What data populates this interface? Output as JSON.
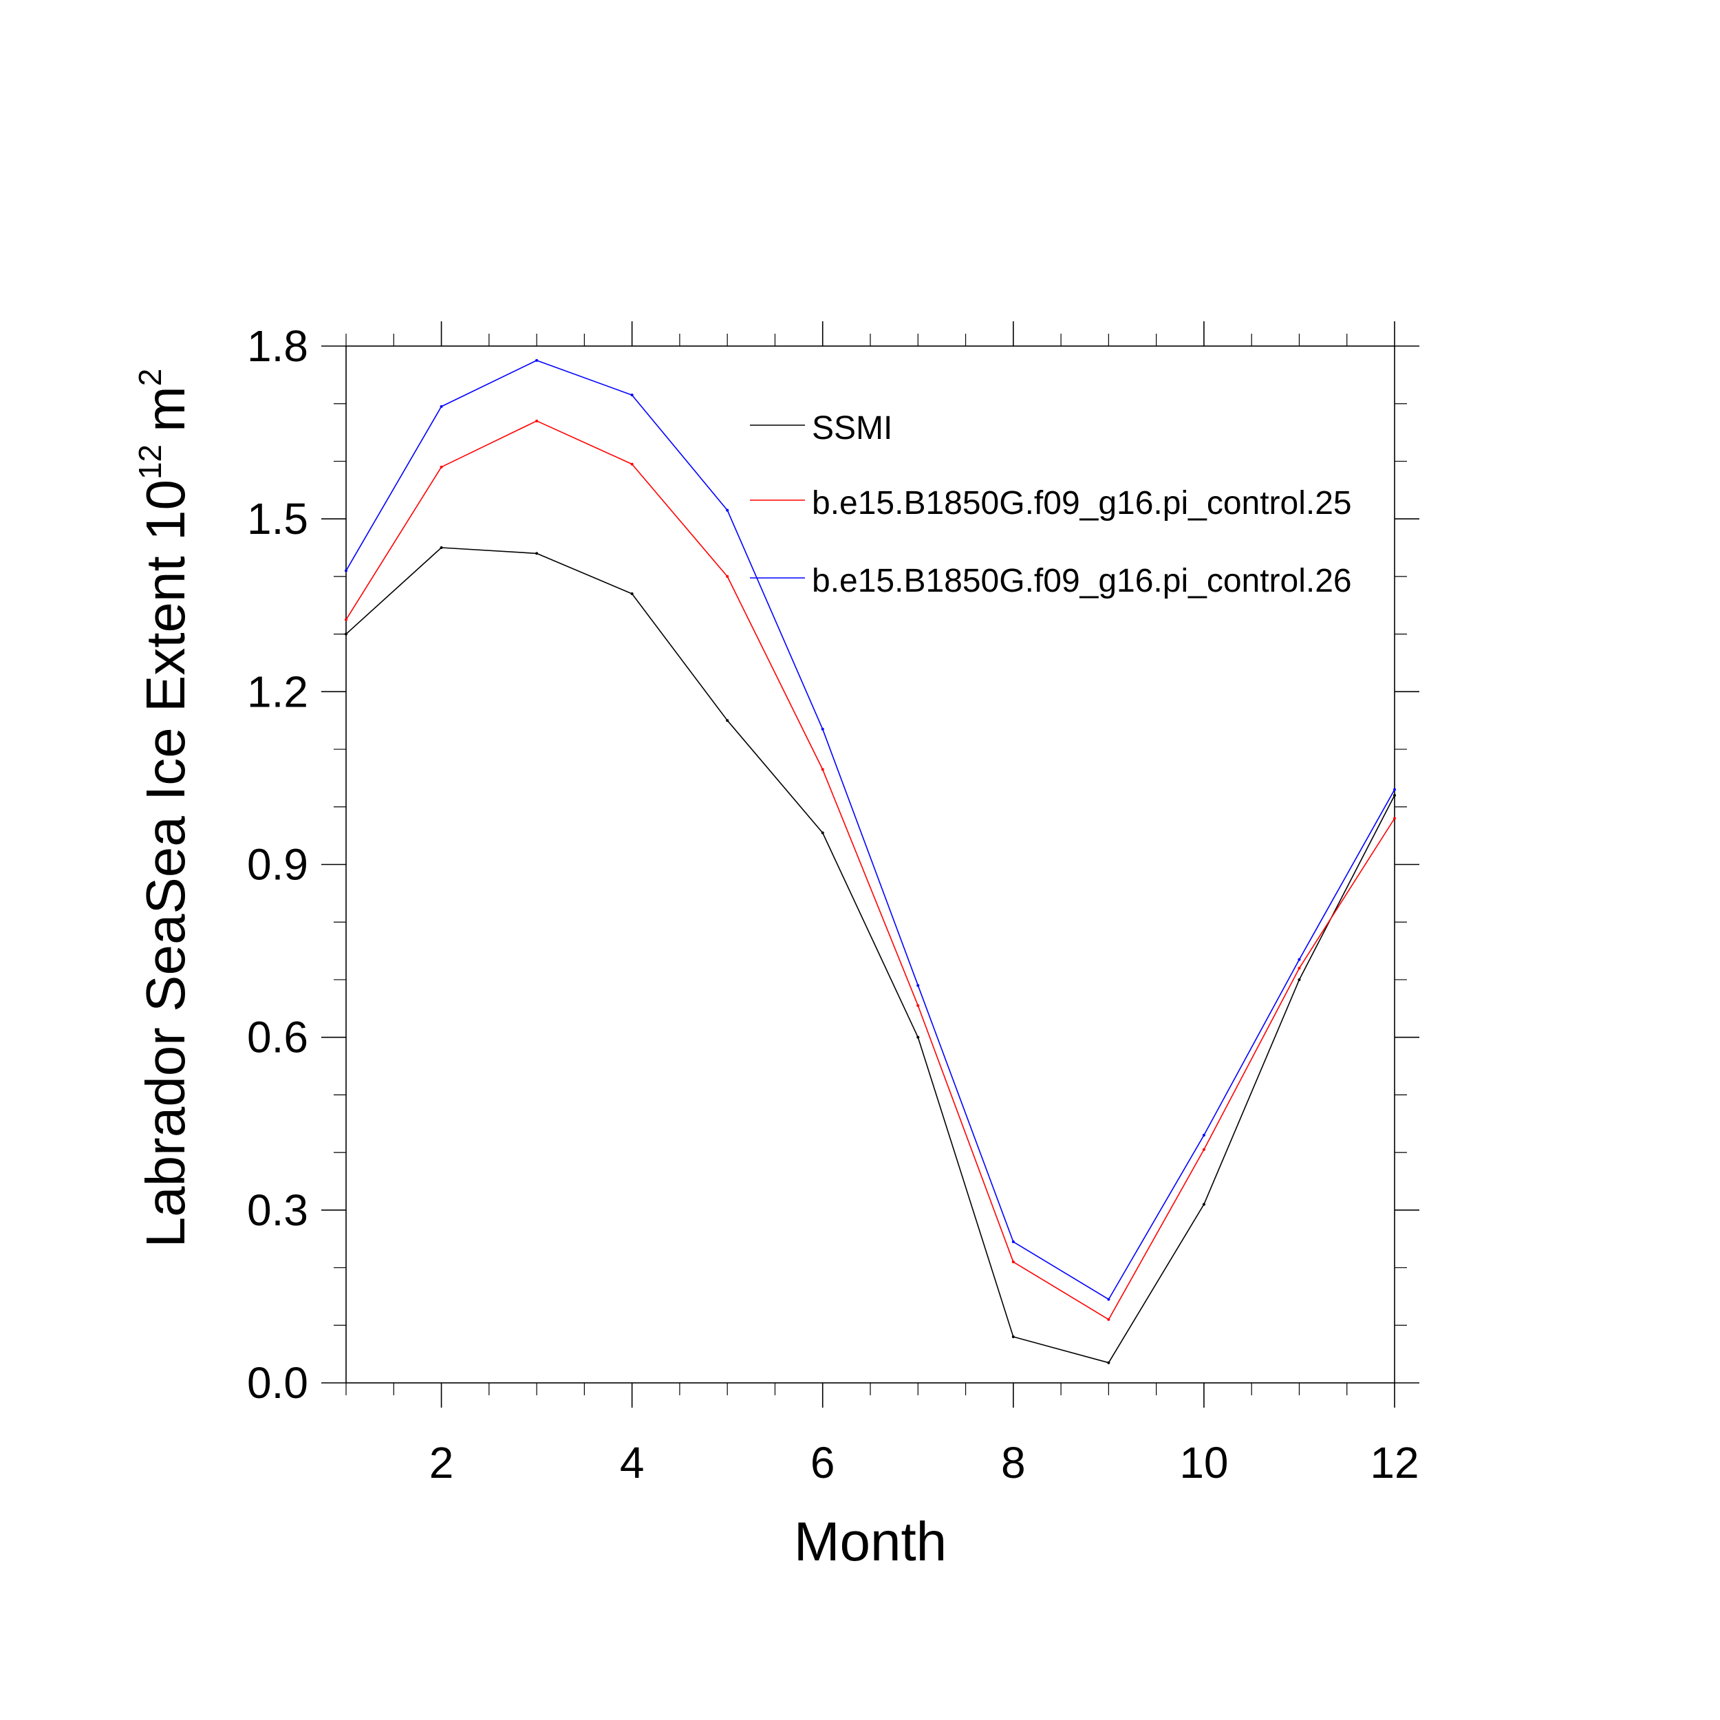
{
  "chart_data": {
    "type": "line",
    "title": "",
    "xlabel": "Month",
    "ylabel": "Labrador SeaSea Ice Extent 10",
    "ylabel_exponent": "12",
    "ylabel_unit": "m",
    "ylabel_unit_exponent": "2",
    "xlim": [
      1,
      12
    ],
    "ylim": [
      0,
      1.8
    ],
    "x": [
      1,
      2,
      3,
      4,
      5,
      6,
      7,
      8,
      9,
      10,
      11,
      12
    ],
    "x_ticks": [
      "2",
      "4",
      "6",
      "8",
      "10",
      "12"
    ],
    "y_ticks": [
      "0.0",
      "0.3",
      "0.6",
      "0.9",
      "1.2",
      "1.5",
      "1.8"
    ],
    "grid": false,
    "legend_position": "top-right",
    "series": [
      {
        "name": "SSMI",
        "color": "#000000",
        "values": [
          1.3,
          1.45,
          1.44,
          1.37,
          1.15,
          0.955,
          0.6,
          0.08,
          0.035,
          0.31,
          0.7,
          1.02
        ]
      },
      {
        "name": "b.e15.B1850G.f09_g16.pi_control.25",
        "color": "#ff0000",
        "values": [
          1.325,
          1.59,
          1.67,
          1.595,
          1.4,
          1.065,
          0.655,
          0.21,
          0.11,
          0.405,
          0.72,
          0.98
        ]
      },
      {
        "name": "b.e15.B1850G.f09_g16.pi_control.26",
        "color": "#0000ff",
        "values": [
          1.41,
          1.695,
          1.775,
          1.715,
          1.515,
          1.135,
          0.69,
          0.245,
          0.145,
          0.43,
          0.735,
          1.03
        ]
      }
    ]
  }
}
